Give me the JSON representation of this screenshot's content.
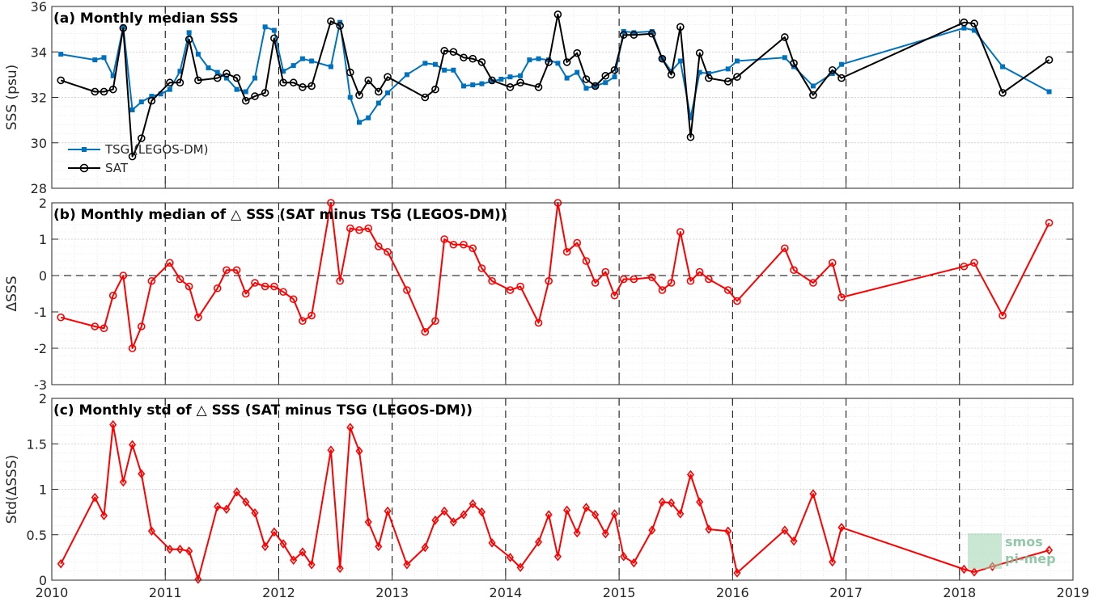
{
  "chart_data": [
    {
      "id": "a",
      "type": "line",
      "title": "(a) Monthly median SSS",
      "ylabel": "SSS (psu)",
      "xlim": [
        2010,
        2019
      ],
      "ylim": [
        28,
        36
      ],
      "yticks": [
        28,
        30,
        32,
        34,
        36
      ],
      "grid": true,
      "legend_position": "left",
      "series": [
        {
          "name": "TSG (LEGOS-DM)",
          "color": "#0072bd",
          "marker": "square",
          "x": [
            2010.08,
            2010.38,
            2010.46,
            2010.54,
            2010.63,
            2010.71,
            2010.79,
            2010.88,
            2010.96,
            2011.04,
            2011.13,
            2011.21,
            2011.29,
            2011.38,
            2011.46,
            2011.54,
            2011.63,
            2011.71,
            2011.79,
            2011.88,
            2011.96,
            2012.04,
            2012.13,
            2012.21,
            2012.29,
            2012.46,
            2012.54,
            2012.63,
            2012.71,
            2012.79,
            2012.88,
            2012.96,
            2013.13,
            2013.29,
            2013.38,
            2013.46,
            2013.54,
            2013.63,
            2013.71,
            2013.79,
            2013.88,
            2013.96,
            2014.04,
            2014.13,
            2014.21,
            2014.29,
            2014.38,
            2014.46,
            2014.54,
            2014.63,
            2014.71,
            2014.79,
            2014.88,
            2014.96,
            2015.04,
            2015.13,
            2015.29,
            2015.38,
            2015.46,
            2015.54,
            2015.63,
            2015.71,
            2015.79,
            2015.96,
            2016.04,
            2016.46,
            2016.54,
            2016.71,
            2016.88,
            2016.96,
            2018.04,
            2018.13,
            2018.38,
            2018.79
          ],
          "values": [
            33.9,
            33.65,
            33.75,
            32.95,
            35.1,
            31.45,
            31.8,
            32.05,
            32.15,
            32.35,
            33.15,
            34.85,
            33.9,
            33.3,
            33.1,
            32.85,
            32.35,
            32.25,
            32.85,
            35.1,
            34.95,
            33.15,
            33.4,
            33.7,
            33.6,
            33.35,
            35.3,
            32.0,
            30.9,
            31.1,
            31.75,
            32.2,
            33.0,
            33.5,
            33.45,
            33.2,
            33.2,
            32.5,
            32.55,
            32.6,
            32.7,
            32.8,
            32.9,
            32.95,
            33.65,
            33.7,
            33.65,
            33.5,
            32.85,
            33.1,
            32.4,
            32.5,
            32.65,
            32.9,
            34.9,
            34.85,
            34.9,
            33.7,
            33.15,
            33.6,
            31.1,
            33.1,
            33.05,
            33.25,
            33.6,
            33.75,
            33.35,
            32.5,
            33.05,
            33.45,
            35.05,
            34.95,
            33.35,
            32.25
          ]
        },
        {
          "name": "SAT",
          "color": "#000000",
          "marker": "circle",
          "x": [
            2010.08,
            2010.38,
            2010.46,
            2010.54,
            2010.63,
            2010.71,
            2010.79,
            2010.88,
            2011.04,
            2011.13,
            2011.21,
            2011.29,
            2011.46,
            2011.54,
            2011.63,
            2011.71,
            2011.79,
            2011.88,
            2011.96,
            2012.04,
            2012.13,
            2012.21,
            2012.29,
            2012.46,
            2012.54,
            2012.63,
            2012.71,
            2012.79,
            2012.88,
            2012.96,
            2013.29,
            2013.38,
            2013.46,
            2013.54,
            2013.63,
            2013.71,
            2013.79,
            2013.88,
            2014.04,
            2014.13,
            2014.29,
            2014.38,
            2014.46,
            2014.54,
            2014.63,
            2014.71,
            2014.79,
            2014.88,
            2014.96,
            2015.04,
            2015.13,
            2015.29,
            2015.38,
            2015.46,
            2015.54,
            2015.63,
            2015.71,
            2015.79,
            2015.96,
            2016.04,
            2016.46,
            2016.54,
            2016.71,
            2016.88,
            2016.96,
            2018.04,
            2018.13,
            2018.38,
            2018.79
          ],
          "values": [
            32.75,
            32.25,
            32.25,
            32.35,
            35.05,
            29.4,
            30.2,
            31.85,
            32.65,
            32.65,
            34.55,
            32.75,
            32.85,
            33.05,
            32.85,
            31.85,
            32.05,
            32.2,
            34.6,
            32.65,
            32.65,
            32.45,
            32.5,
            35.35,
            35.15,
            33.1,
            32.1,
            32.75,
            32.25,
            32.9,
            32.0,
            32.35,
            34.05,
            34.0,
            33.75,
            33.7,
            33.55,
            32.75,
            32.45,
            32.65,
            32.45,
            33.55,
            35.65,
            33.55,
            33.95,
            32.8,
            32.5,
            32.95,
            33.2,
            34.75,
            34.75,
            34.8,
            33.7,
            33.0,
            35.1,
            30.25,
            33.95,
            32.85,
            32.7,
            32.9,
            34.65,
            33.5,
            32.1,
            33.2,
            32.85,
            35.3,
            35.25,
            32.2,
            33.65
          ]
        }
      ]
    },
    {
      "id": "b",
      "type": "line",
      "title": "(b) Monthly median of △ SSS (SAT minus TSG (LEGOS-DM))",
      "ylabel": "ΔSSS",
      "xlim": [
        2010,
        2019
      ],
      "ylim": [
        -3,
        2
      ],
      "yticks": [
        -3,
        -2,
        -1,
        0,
        1,
        2
      ],
      "zero_line": true,
      "grid": true,
      "series": [
        {
          "name": "",
          "color": "#ff0000",
          "marker": "circle",
          "x": [
            2010.08,
            2010.38,
            2010.46,
            2010.54,
            2010.63,
            2010.71,
            2010.79,
            2010.88,
            2011.04,
            2011.13,
            2011.21,
            2011.29,
            2011.46,
            2011.54,
            2011.63,
            2011.71,
            2011.79,
            2011.88,
            2011.96,
            2012.04,
            2012.13,
            2012.21,
            2012.29,
            2012.46,
            2012.54,
            2012.63,
            2012.71,
            2012.79,
            2012.88,
            2012.96,
            2013.13,
            2013.29,
            2013.38,
            2013.46,
            2013.54,
            2013.63,
            2013.71,
            2013.79,
            2013.88,
            2014.04,
            2014.13,
            2014.29,
            2014.38,
            2014.46,
            2014.54,
            2014.63,
            2014.71,
            2014.79,
            2014.88,
            2014.96,
            2015.04,
            2015.13,
            2015.29,
            2015.38,
            2015.46,
            2015.54,
            2015.63,
            2015.71,
            2015.79,
            2015.96,
            2016.04,
            2016.46,
            2016.54,
            2016.71,
            2016.88,
            2016.96,
            2018.04,
            2018.13,
            2018.38,
            2018.79
          ],
          "values": [
            -1.15,
            -1.4,
            -1.45,
            -0.55,
            0.0,
            -2.0,
            -1.4,
            -0.15,
            0.35,
            -0.1,
            -0.3,
            -1.15,
            -0.35,
            0.15,
            0.15,
            -0.5,
            -0.2,
            -0.3,
            -0.3,
            -0.45,
            -0.65,
            -1.25,
            -1.1,
            2.0,
            -0.15,
            1.3,
            1.25,
            1.3,
            0.8,
            0.65,
            -0.4,
            -1.55,
            -1.25,
            1.0,
            0.85,
            0.85,
            0.75,
            0.2,
            -0.15,
            -0.4,
            -0.3,
            -1.3,
            -0.15,
            2.0,
            0.65,
            0.9,
            0.4,
            -0.2,
            0.1,
            -0.55,
            -0.1,
            -0.1,
            -0.05,
            -0.4,
            -0.2,
            1.2,
            -0.15,
            0.1,
            -0.1,
            -0.4,
            -0.7,
            0.75,
            0.15,
            -0.2,
            0.35,
            -0.6,
            0.25,
            0.35,
            -1.1,
            1.45
          ]
        }
      ]
    },
    {
      "id": "c",
      "type": "line",
      "title": "(c) Monthly std of △ SSS (SAT minus TSG (LEGOS-DM))",
      "ylabel": "Std(ΔSSS)",
      "xlim": [
        2010,
        2019
      ],
      "ylim": [
        0,
        2
      ],
      "yticks": [
        0,
        0.5,
        1,
        1.5,
        2
      ],
      "xticks": [
        2010,
        2011,
        2012,
        2013,
        2014,
        2015,
        2016,
        2017,
        2018,
        2019
      ],
      "grid": true,
      "series": [
        {
          "name": "",
          "color": "#ff0000",
          "marker": "diamond",
          "x": [
            2010.08,
            2010.38,
            2010.46,
            2010.54,
            2010.63,
            2010.71,
            2010.79,
            2010.88,
            2011.04,
            2011.13,
            2011.21,
            2011.29,
            2011.46,
            2011.54,
            2011.63,
            2011.71,
            2011.79,
            2011.88,
            2011.96,
            2012.04,
            2012.13,
            2012.21,
            2012.29,
            2012.46,
            2012.54,
            2012.63,
            2012.71,
            2012.79,
            2012.88,
            2012.96,
            2013.13,
            2013.29,
            2013.38,
            2013.46,
            2013.54,
            2013.63,
            2013.71,
            2013.79,
            2013.88,
            2014.04,
            2014.13,
            2014.29,
            2014.38,
            2014.46,
            2014.54,
            2014.63,
            2014.71,
            2014.79,
            2014.88,
            2014.96,
            2015.04,
            2015.13,
            2015.29,
            2015.38,
            2015.46,
            2015.54,
            2015.63,
            2015.71,
            2015.79,
            2015.96,
            2016.04,
            2016.46,
            2016.54,
            2016.71,
            2016.88,
            2016.96,
            2018.04,
            2018.13,
            2018.29,
            2018.79
          ],
          "values": [
            0.18,
            0.91,
            0.71,
            1.71,
            1.08,
            1.49,
            1.17,
            0.54,
            0.34,
            0.34,
            0.32,
            0.01,
            0.81,
            0.78,
            0.97,
            0.86,
            0.74,
            0.37,
            0.53,
            0.4,
            0.22,
            0.31,
            0.17,
            1.43,
            0.13,
            1.68,
            1.42,
            0.64,
            0.37,
            0.76,
            0.17,
            0.36,
            0.66,
            0.76,
            0.64,
            0.72,
            0.84,
            0.75,
            0.41,
            0.25,
            0.14,
            0.42,
            0.72,
            0.26,
            0.77,
            0.52,
            0.8,
            0.72,
            0.51,
            0.73,
            0.26,
            0.19,
            0.55,
            0.86,
            0.85,
            0.73,
            1.16,
            0.86,
            0.56,
            0.54,
            0.08,
            0.55,
            0.43,
            0.95,
            0.2,
            0.58,
            0.12,
            0.09,
            0.15,
            0.33
          ]
        }
      ]
    }
  ],
  "dashed_year_lines": [
    2011,
    2012,
    2013,
    2014,
    2015,
    2016,
    2017,
    2018
  ],
  "logo": {
    "line1": "smos",
    "line2": "pi-mep"
  }
}
